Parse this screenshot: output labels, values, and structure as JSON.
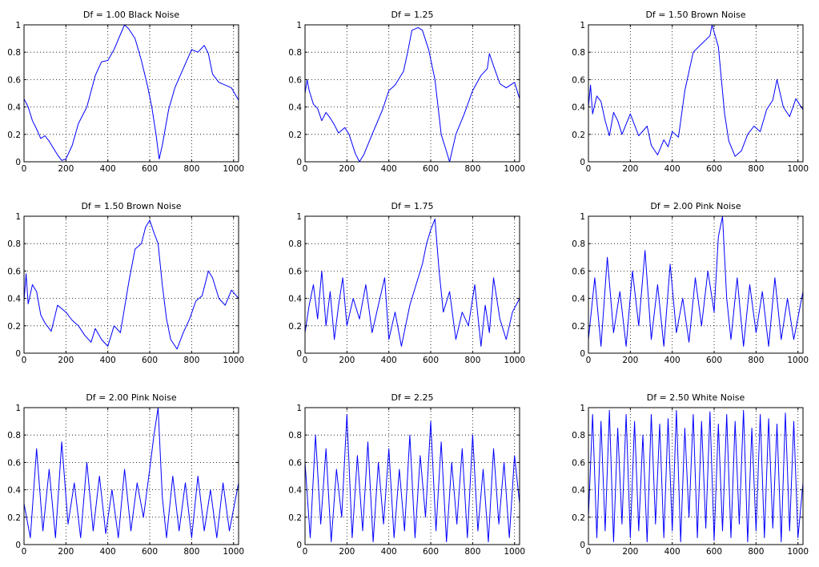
{
  "figure": {
    "background": "#ffffff",
    "line_color": "#0000ff",
    "axis_color": "#000000"
  },
  "chart_data": [
    {
      "type": "line",
      "title": "Df = 1.00 Black Noise",
      "xlim": [
        0,
        1024
      ],
      "ylim": [
        0,
        1
      ],
      "xticks": [
        0,
        200,
        400,
        600,
        800,
        1000
      ],
      "yticks": [
        0,
        0.2,
        0.4,
        0.6,
        0.8,
        1
      ],
      "grid": true,
      "xlabel": "",
      "ylabel": "",
      "series": [
        {
          "x": [
            0,
            20,
            40,
            60,
            80,
            100,
            120,
            140,
            160,
            180,
            200,
            230,
            260,
            300,
            340,
            370,
            400,
            430,
            460,
            480,
            500,
            530,
            560,
            590,
            610,
            630,
            645,
            660,
            690,
            720,
            760,
            800,
            830,
            860,
            880,
            900,
            930,
            960,
            990,
            1024
          ],
          "y": [
            0.46,
            0.4,
            0.3,
            0.24,
            0.17,
            0.19,
            0.15,
            0.1,
            0.05,
            0.01,
            0.02,
            0.12,
            0.28,
            0.4,
            0.63,
            0.73,
            0.74,
            0.82,
            0.93,
            1.0,
            0.97,
            0.9,
            0.74,
            0.55,
            0.4,
            0.2,
            0.02,
            0.12,
            0.38,
            0.54,
            0.68,
            0.82,
            0.8,
            0.85,
            0.79,
            0.64,
            0.58,
            0.56,
            0.54,
            0.45
          ]
        }
      ]
    },
    {
      "type": "line",
      "title": "Df = 1.25",
      "xlim": [
        0,
        1024
      ],
      "ylim": [
        0,
        1
      ],
      "xticks": [
        0,
        200,
        400,
        600,
        800,
        1000
      ],
      "yticks": [
        0,
        0.2,
        0.4,
        0.6,
        0.8,
        1
      ],
      "grid": true,
      "xlabel": "",
      "ylabel": "",
      "series": [
        {
          "x": [
            0,
            10,
            20,
            40,
            60,
            80,
            100,
            120,
            140,
            160,
            190,
            210,
            240,
            260,
            280,
            320,
            370,
            400,
            430,
            470,
            490,
            510,
            540,
            560,
            590,
            620,
            650,
            670,
            690,
            720,
            760,
            800,
            840,
            870,
            880,
            900,
            930,
            960,
            1000,
            1024
          ],
          "y": [
            0.5,
            0.6,
            0.52,
            0.42,
            0.39,
            0.3,
            0.36,
            0.32,
            0.27,
            0.21,
            0.25,
            0.2,
            0.06,
            0.0,
            0.05,
            0.2,
            0.38,
            0.52,
            0.56,
            0.66,
            0.8,
            0.96,
            0.98,
            0.96,
            0.82,
            0.6,
            0.2,
            0.1,
            0.0,
            0.2,
            0.35,
            0.52,
            0.63,
            0.68,
            0.79,
            0.7,
            0.57,
            0.54,
            0.58,
            0.46
          ]
        }
      ]
    },
    {
      "type": "line",
      "title": "Df = 1.50 Brown Noise",
      "xlim": [
        0,
        1024
      ],
      "ylim": [
        0,
        1
      ],
      "xticks": [
        0,
        200,
        400,
        600,
        800,
        1000
      ],
      "yticks": [
        0,
        0.2,
        0.4,
        0.6,
        0.8,
        1
      ],
      "grid": true,
      "xlabel": "",
      "ylabel": "",
      "series": [
        {
          "x": [
            0,
            10,
            20,
            40,
            60,
            80,
            100,
            120,
            140,
            160,
            200,
            240,
            280,
            300,
            330,
            360,
            380,
            400,
            430,
            460,
            500,
            540,
            580,
            590,
            620,
            650,
            670,
            700,
            730,
            760,
            790,
            820,
            850,
            880,
            900,
            930,
            960,
            990,
            1024
          ],
          "y": [
            0.4,
            0.56,
            0.35,
            0.48,
            0.44,
            0.3,
            0.19,
            0.36,
            0.3,
            0.2,
            0.35,
            0.19,
            0.26,
            0.12,
            0.05,
            0.16,
            0.11,
            0.22,
            0.18,
            0.52,
            0.8,
            0.86,
            0.92,
            1.0,
            0.84,
            0.35,
            0.15,
            0.04,
            0.08,
            0.2,
            0.26,
            0.22,
            0.38,
            0.45,
            0.6,
            0.4,
            0.33,
            0.46,
            0.38
          ]
        }
      ]
    },
    {
      "type": "line",
      "title": "Df = 1.50 Brown Noise",
      "xlim": [
        0,
        1024
      ],
      "ylim": [
        0,
        1
      ],
      "xticks": [
        0,
        200,
        400,
        600,
        800,
        1000
      ],
      "yticks": [
        0,
        0.2,
        0.4,
        0.6,
        0.8,
        1
      ],
      "grid": true,
      "xlabel": "",
      "ylabel": "",
      "series": [
        {
          "x": [
            0,
            10,
            20,
            40,
            60,
            80,
            100,
            130,
            160,
            200,
            230,
            260,
            290,
            320,
            340,
            370,
            400,
            430,
            460,
            500,
            530,
            560,
            580,
            600,
            620,
            640,
            660,
            680,
            700,
            730,
            760,
            790,
            820,
            850,
            880,
            900,
            930,
            960,
            990,
            1024
          ],
          "y": [
            0.38,
            0.58,
            0.36,
            0.5,
            0.45,
            0.28,
            0.22,
            0.16,
            0.35,
            0.3,
            0.24,
            0.2,
            0.13,
            0.08,
            0.18,
            0.1,
            0.05,
            0.2,
            0.15,
            0.52,
            0.76,
            0.8,
            0.92,
            0.97,
            0.88,
            0.8,
            0.5,
            0.25,
            0.1,
            0.03,
            0.15,
            0.25,
            0.38,
            0.42,
            0.6,
            0.55,
            0.4,
            0.35,
            0.46,
            0.4
          ]
        }
      ]
    },
    {
      "type": "line",
      "title": "Df = 1.75",
      "xlim": [
        0,
        1024
      ],
      "ylim": [
        0,
        1
      ],
      "xticks": [
        0,
        200,
        400,
        600,
        800,
        1000
      ],
      "yticks": [
        0,
        0.2,
        0.4,
        0.6,
        0.8,
        1
      ],
      "grid": true,
      "xlabel": "",
      "ylabel": "",
      "series": [
        {
          "x": [
            0,
            20,
            40,
            60,
            80,
            100,
            120,
            140,
            160,
            180,
            200,
            230,
            260,
            290,
            320,
            350,
            380,
            400,
            430,
            460,
            500,
            530,
            560,
            580,
            600,
            620,
            640,
            660,
            690,
            720,
            750,
            780,
            810,
            840,
            860,
            880,
            900,
            930,
            960,
            990,
            1024
          ],
          "y": [
            0.15,
            0.35,
            0.5,
            0.25,
            0.6,
            0.2,
            0.45,
            0.1,
            0.35,
            0.55,
            0.2,
            0.4,
            0.25,
            0.5,
            0.15,
            0.35,
            0.55,
            0.1,
            0.3,
            0.05,
            0.35,
            0.5,
            0.65,
            0.8,
            0.9,
            0.98,
            0.6,
            0.3,
            0.45,
            0.1,
            0.3,
            0.2,
            0.5,
            0.05,
            0.35,
            0.15,
            0.55,
            0.25,
            0.1,
            0.3,
            0.4
          ]
        }
      ]
    },
    {
      "type": "line",
      "title": "Df = 2.00 Pink Noise",
      "xlim": [
        0,
        1024
      ],
      "ylim": [
        0,
        1
      ],
      "xticks": [
        0,
        200,
        400,
        600,
        800,
        1000
      ],
      "yticks": [
        0,
        0.2,
        0.4,
        0.6,
        0.8,
        1
      ],
      "grid": true,
      "xlabel": "",
      "ylabel": "",
      "series": [
        {
          "x": [
            0,
            30,
            60,
            90,
            120,
            150,
            180,
            210,
            240,
            270,
            300,
            330,
            360,
            390,
            420,
            450,
            480,
            510,
            540,
            570,
            600,
            620,
            640,
            660,
            680,
            710,
            740,
            770,
            800,
            830,
            860,
            890,
            920,
            950,
            980,
            1024
          ],
          "y": [
            0.1,
            0.55,
            0.05,
            0.7,
            0.15,
            0.45,
            0.05,
            0.6,
            0.2,
            0.75,
            0.1,
            0.5,
            0.05,
            0.65,
            0.15,
            0.4,
            0.08,
            0.55,
            0.2,
            0.6,
            0.3,
            0.85,
            1.0,
            0.4,
            0.1,
            0.55,
            0.05,
            0.5,
            0.15,
            0.45,
            0.05,
            0.55,
            0.1,
            0.4,
            0.1,
            0.45
          ]
        }
      ]
    },
    {
      "type": "line",
      "title": "Df = 2.00 Pink Noise",
      "xlim": [
        0,
        1024
      ],
      "ylim": [
        0,
        1
      ],
      "xticks": [
        0,
        200,
        400,
        600,
        800,
        1000
      ],
      "yticks": [
        0,
        0.2,
        0.4,
        0.6,
        0.8,
        1
      ],
      "grid": true,
      "xlabel": "",
      "ylabel": "",
      "series": [
        {
          "x": [
            0,
            30,
            60,
            90,
            120,
            150,
            180,
            210,
            240,
            270,
            300,
            330,
            360,
            390,
            420,
            450,
            480,
            510,
            540,
            570,
            600,
            620,
            640,
            660,
            680,
            710,
            740,
            770,
            800,
            830,
            860,
            890,
            920,
            950,
            980,
            1024
          ],
          "y": [
            0.3,
            0.05,
            0.7,
            0.1,
            0.55,
            0.05,
            0.75,
            0.15,
            0.45,
            0.05,
            0.6,
            0.1,
            0.5,
            0.08,
            0.4,
            0.05,
            0.55,
            0.1,
            0.45,
            0.2,
            0.55,
            0.8,
            1.0,
            0.35,
            0.05,
            0.5,
            0.1,
            0.45,
            0.05,
            0.5,
            0.1,
            0.4,
            0.05,
            0.45,
            0.1,
            0.45
          ]
        }
      ]
    },
    {
      "type": "line",
      "title": "Df = 2.25",
      "xlim": [
        0,
        1024
      ],
      "ylim": [
        0,
        1
      ],
      "xticks": [
        0,
        200,
        400,
        600,
        800,
        1000
      ],
      "yticks": [
        0,
        0.2,
        0.4,
        0.6,
        0.8,
        1
      ],
      "grid": true,
      "xlabel": "",
      "ylabel": "",
      "series": [
        {
          "x": [
            0,
            25,
            50,
            75,
            100,
            125,
            150,
            175,
            200,
            225,
            250,
            275,
            300,
            325,
            350,
            375,
            400,
            425,
            450,
            475,
            500,
            525,
            550,
            575,
            600,
            625,
            650,
            675,
            700,
            725,
            750,
            775,
            800,
            825,
            850,
            875,
            900,
            925,
            950,
            975,
            1000,
            1024
          ],
          "y": [
            0.6,
            0.05,
            0.8,
            0.15,
            0.7,
            0.02,
            0.55,
            0.2,
            0.95,
            0.05,
            0.65,
            0.1,
            0.75,
            0.02,
            0.6,
            0.15,
            0.7,
            0.05,
            0.55,
            0.1,
            0.8,
            0.05,
            0.65,
            0.2,
            0.9,
            0.1,
            0.75,
            0.02,
            0.6,
            0.15,
            0.7,
            0.05,
            0.8,
            0.1,
            0.55,
            0.02,
            0.7,
            0.15,
            0.6,
            0.05,
            0.65,
            0.3
          ]
        }
      ]
    },
    {
      "type": "line",
      "title": "Df = 2.50 White Noise",
      "xlim": [
        0,
        1024
      ],
      "ylim": [
        0,
        1
      ],
      "xticks": [
        0,
        200,
        400,
        600,
        800,
        1000
      ],
      "yticks": [
        0,
        0.2,
        0.4,
        0.6,
        0.8,
        1
      ],
      "grid": true,
      "xlabel": "",
      "ylabel": "",
      "series": [
        {
          "x": [
            0,
            20,
            40,
            60,
            80,
            100,
            120,
            140,
            160,
            180,
            200,
            220,
            240,
            260,
            280,
            300,
            320,
            340,
            360,
            380,
            400,
            420,
            440,
            460,
            480,
            500,
            520,
            540,
            560,
            580,
            600,
            620,
            640,
            660,
            680,
            700,
            720,
            740,
            760,
            780,
            800,
            820,
            840,
            860,
            880,
            900,
            920,
            940,
            960,
            980,
            1000,
            1024
          ],
          "y": [
            0.2,
            0.95,
            0.05,
            0.9,
            0.1,
            0.98,
            0.02,
            0.85,
            0.15,
            0.95,
            0.05,
            0.9,
            0.1,
            0.8,
            0.02,
            0.95,
            0.15,
            0.88,
            0.05,
            0.92,
            0.1,
            0.98,
            0.02,
            0.85,
            0.2,
            0.95,
            0.05,
            0.9,
            0.12,
            0.97,
            0.03,
            0.88,
            0.1,
            0.95,
            0.05,
            0.9,
            0.15,
            0.98,
            0.02,
            0.85,
            0.1,
            0.95,
            0.05,
            0.92,
            0.12,
            0.88,
            0.02,
            0.96,
            0.1,
            0.9,
            0.05,
            0.45
          ]
        }
      ]
    }
  ]
}
